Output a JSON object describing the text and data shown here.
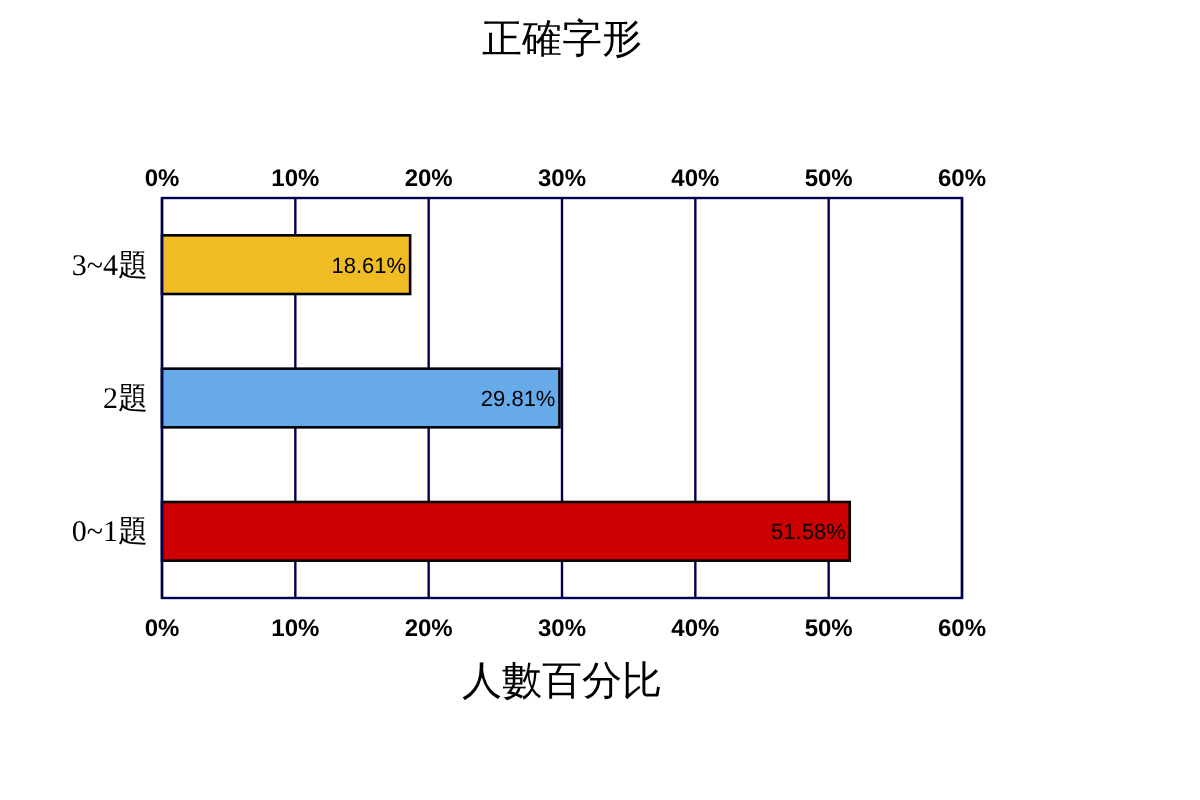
{
  "chart_data": {
    "type": "bar",
    "orientation": "horizontal",
    "title": "正確字形",
    "xlabel": "人數百分比",
    "categories": [
      "3~4題",
      "2題",
      "0~1題"
    ],
    "values": [
      18.61,
      29.81,
      51.58
    ],
    "colors": [
      "#f0bc24",
      "#66aaea",
      "#cc0000"
    ],
    "value_labels": [
      "18.61%",
      "29.81%",
      "51.58%"
    ],
    "xlim": [
      0,
      60
    ],
    "xticks": [
      {
        "value": 0,
        "label": "0%"
      },
      {
        "value": 10,
        "label": "10%"
      },
      {
        "value": 20,
        "label": "20%"
      },
      {
        "value": 30,
        "label": "30%"
      },
      {
        "value": 40,
        "label": "40%"
      },
      {
        "value": 50,
        "label": "50%"
      },
      {
        "value": 60,
        "label": "60%"
      }
    ],
    "x2lim": [
      0,
      60
    ],
    "x2ticks": [
      {
        "value": 0,
        "label": "0%"
      },
      {
        "value": 10,
        "label": "10%"
      },
      {
        "value": 20,
        "label": "20%"
      },
      {
        "value": 30,
        "label": "30%"
      },
      {
        "value": 40,
        "label": "40%"
      },
      {
        "value": 50,
        "label": "50%"
      },
      {
        "value": 60,
        "label": "60%"
      }
    ],
    "grid": "x"
  }
}
